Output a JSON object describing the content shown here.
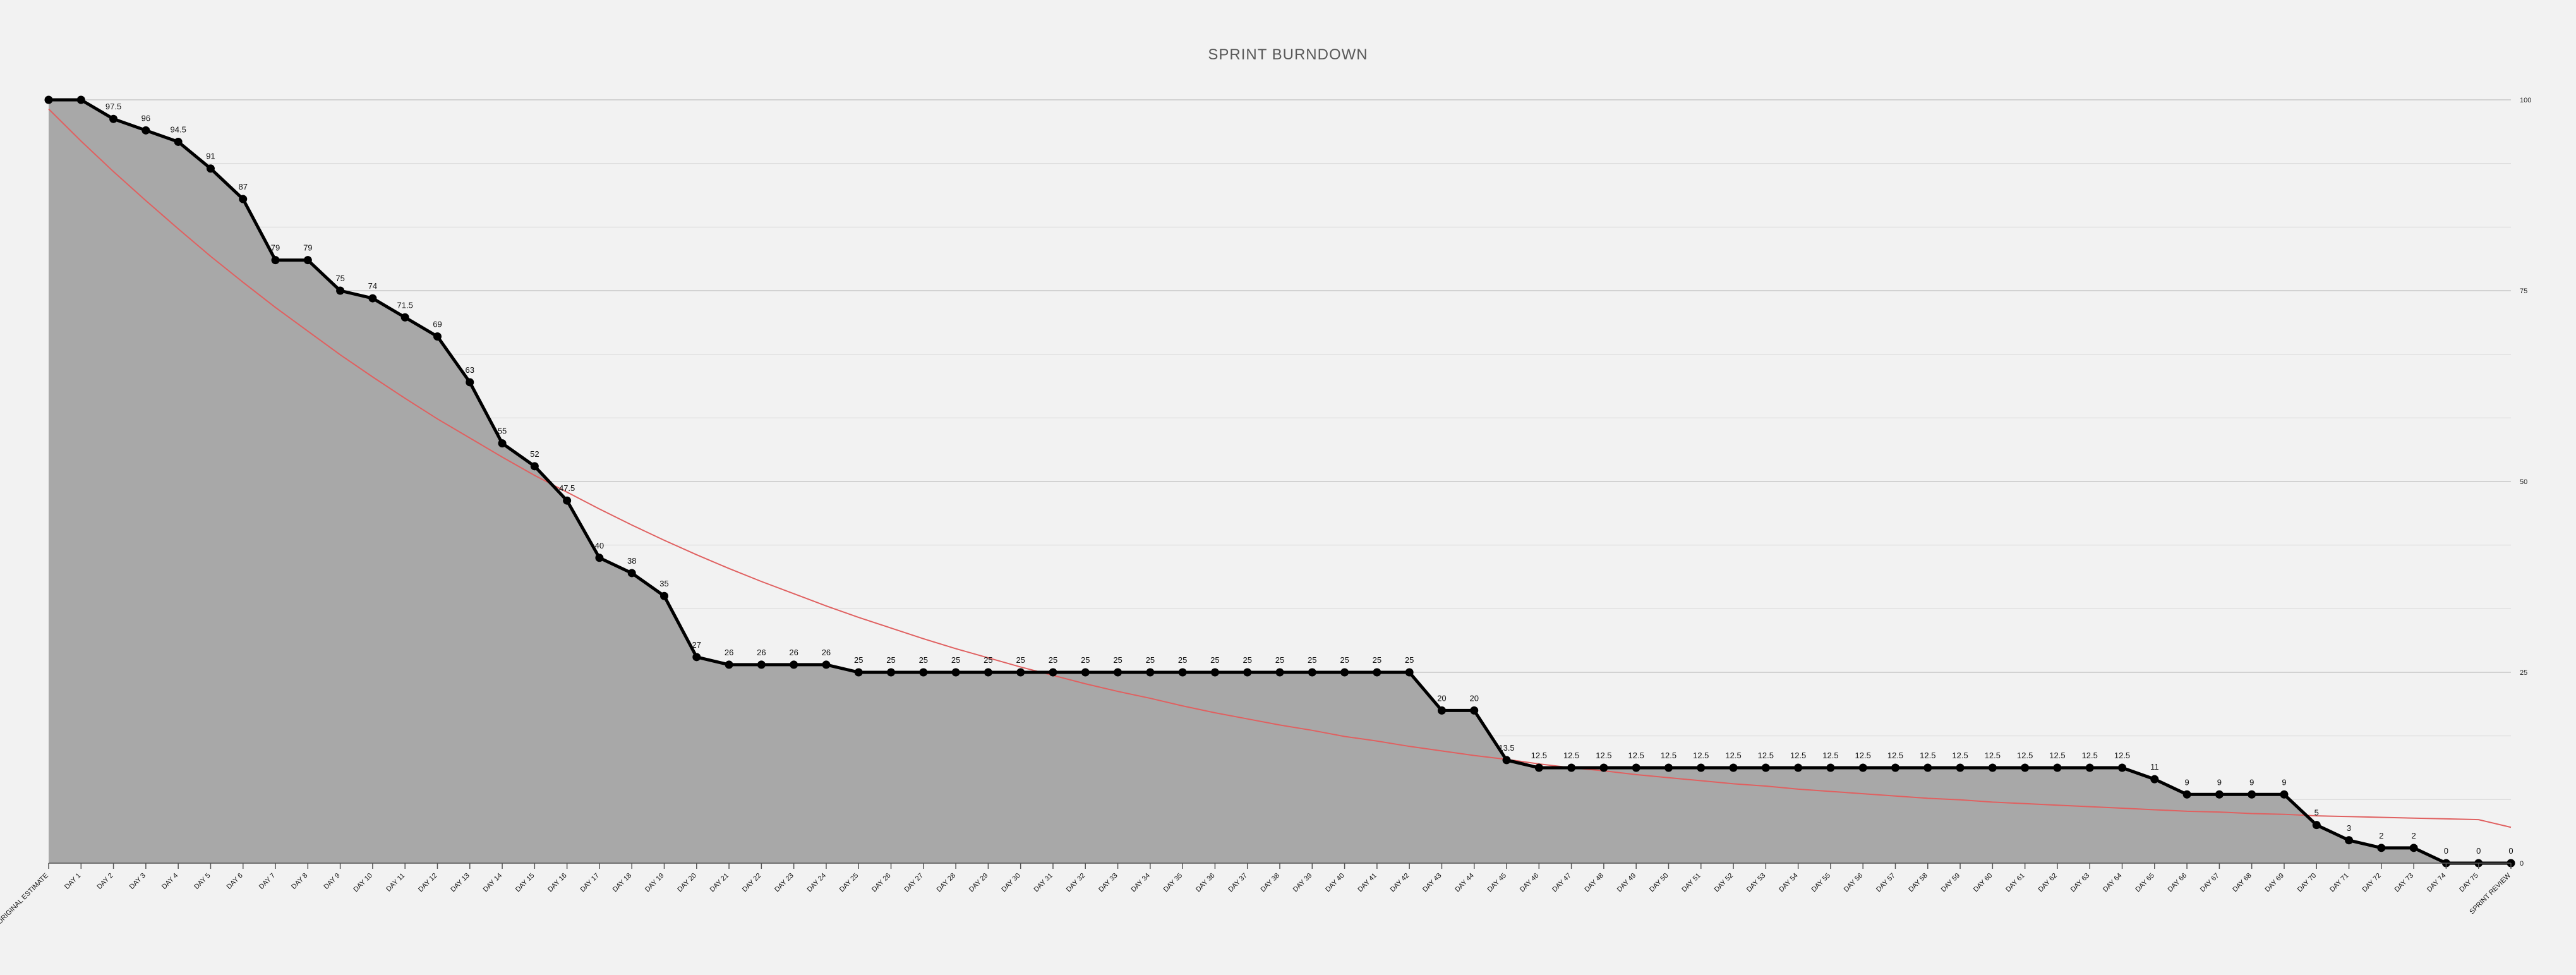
{
  "chart_data": {
    "type": "area",
    "title": "SPRINT BURNDOWN",
    "categories": [
      "ORIGINAL ESTIMATE",
      "DAY 1",
      "DAY 2",
      "DAY 3",
      "DAY 4",
      "DAY 5",
      "DAY 6",
      "DAY 7",
      "DAY 8",
      "DAY 9",
      "DAY 10",
      "DAY 11",
      "DAY 12",
      "DAY 13",
      "DAY 14",
      "DAY 15",
      "DAY 16",
      "DAY 17",
      "DAY 18",
      "DAY 19",
      "DAY 20",
      "DAY 21",
      "DAY 22",
      "DAY 23",
      "DAY 24",
      "DAY 25",
      "DAY 26",
      "DAY 27",
      "DAY 28",
      "DAY 29",
      "DAY 30",
      "DAY 31",
      "DAY 32",
      "DAY 33",
      "DAY 34",
      "DAY 35",
      "DAY 36",
      "DAY 37",
      "DAY 38",
      "DAY 39",
      "DAY 40",
      "DAY 41",
      "DAY 42",
      "DAY 43",
      "DAY 44",
      "DAY 45",
      "DAY 46",
      "DAY 47",
      "DAY 48",
      "DAY 49",
      "DAY 50",
      "DAY 51",
      "DAY 52",
      "DAY 53",
      "DAY 54",
      "DAY 55",
      "DAY 56",
      "DAY 57",
      "DAY 58",
      "DAY 59",
      "DAY 60",
      "DAY 61",
      "DAY 62",
      "DAY 63",
      "DAY 64",
      "DAY 65",
      "DAY 66",
      "DAY 67",
      "DAY 68",
      "DAY 69",
      "DAY 70",
      "DAY 71",
      "DAY 72",
      "DAY 73",
      "DAY 74",
      "DAY 75",
      "SPRINT REVIEW"
    ],
    "series": [
      {
        "values": [
          100,
          100,
          97.5,
          96,
          94.5,
          91,
          87,
          79,
          79,
          75,
          74,
          71.5,
          69,
          63,
          55,
          52,
          47.5,
          40,
          38,
          35,
          27,
          26,
          26,
          26,
          26,
          25,
          25,
          25,
          25,
          25,
          25,
          25,
          25,
          25,
          25,
          25,
          25,
          25,
          25,
          25,
          25,
          25,
          25,
          20,
          20,
          13.5,
          12.5,
          12.5,
          12.5,
          12.5,
          12.5,
          12.5,
          12.5,
          12.5,
          12.5,
          12.5,
          12.5,
          12.5,
          12.5,
          12.5,
          12.5,
          12.5,
          12.5,
          12.5,
          12.5,
          11,
          9,
          9,
          9,
          9,
          5,
          3,
          2,
          2,
          0,
          0,
          0
        ],
        "labels": [
          null,
          null,
          "97.5",
          "96",
          "94.5",
          "91",
          "87",
          "79",
          "79",
          "75",
          "74",
          "71.5",
          "69",
          "63",
          "55",
          "52",
          "47.5",
          "40",
          "38",
          "35",
          "27",
          "26",
          "26",
          "26",
          "26",
          "25",
          "25",
          "25",
          "25",
          "25",
          "25",
          "25",
          "25",
          "25",
          "25",
          "25",
          "25",
          "25",
          "25",
          "25",
          "25",
          "25",
          "25",
          "20",
          "20",
          "13.5",
          "12.5",
          "12.5",
          "12.5",
          "12.5",
          "12.5",
          "12.5",
          "12.5",
          "12.5",
          "12.5",
          "12.5",
          "12.5",
          "12.5",
          "12.5",
          "12.5",
          "12.5",
          "12.5",
          "12.5",
          "12.5",
          "12.5",
          "11",
          "9",
          "9",
          "9",
          "9",
          "5",
          "3",
          "2",
          "2",
          "0",
          "0",
          "0"
        ],
        "line_color": "#000000",
        "fill_color": "#a8a8a8"
      },
      {
        "values": [
          98.8,
          94.6,
          90.6,
          86.8,
          83.1,
          79.5,
          76.1,
          72.8,
          69.7,
          66.6,
          63.7,
          60.9,
          58.2,
          55.7,
          53.2,
          50.8,
          48.6,
          46.4,
          44.3,
          42.3,
          40.4,
          38.6,
          36.9,
          35.3,
          33.7,
          32.2,
          30.8,
          29.4,
          28.1,
          26.9,
          25.7,
          24.6,
          23.5,
          22.5,
          21.6,
          20.6,
          19.7,
          18.9,
          18.1,
          17.4,
          16.6,
          16.0,
          15.3,
          14.7,
          14.1,
          13.6,
          13.0,
          12.5,
          12.1,
          11.6,
          11.2,
          10.8,
          10.4,
          10.1,
          9.7,
          9.4,
          9.1,
          8.8,
          8.5,
          8.3,
          8.0,
          7.8,
          7.6,
          7.4,
          7.2,
          7.0,
          6.8,
          6.7,
          6.5,
          6.4,
          6.2,
          6.1,
          6.0,
          5.9,
          5.8,
          5.7,
          4.7
        ],
        "line_color": "#e06060"
      }
    ],
    "ylim": [
      0,
      100
    ],
    "ytick_labels": [
      "0",
      "25",
      "50",
      "75",
      "100"
    ],
    "grid": true,
    "legend": "none",
    "colors": {
      "background": "#f2f2f2",
      "grid_major": "#c8c8c8",
      "grid_minor": "#d8d8d8"
    }
  }
}
